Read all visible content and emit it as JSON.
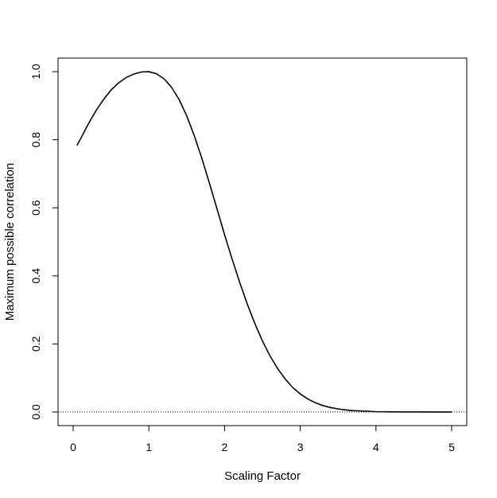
{
  "chart_data": {
    "type": "line",
    "title": "",
    "xlabel": "Scaling Factor",
    "ylabel": "Maximum possible correlation",
    "xlim": [
      -0.2,
      5.2
    ],
    "ylim": [
      -0.04,
      1.04
    ],
    "xticks": [
      0,
      1,
      2,
      3,
      4,
      5
    ],
    "xtick_labels": [
      "0",
      "1",
      "2",
      "3",
      "4",
      "5"
    ],
    "yticks": [
      0.0,
      0.2,
      0.4,
      0.6,
      0.8,
      1.0
    ],
    "ytick_labels": [
      "0.0",
      "0.2",
      "0.4",
      "0.6",
      "0.8",
      "1.0"
    ],
    "grid": false,
    "reference_line": {
      "y": 0,
      "style": "dotted"
    },
    "series": [
      {
        "x": [
          0.05,
          0.1,
          0.2,
          0.3,
          0.4,
          0.5,
          0.6,
          0.7,
          0.8,
          0.9,
          1.0,
          1.1,
          1.2,
          1.3,
          1.4,
          1.5,
          1.6,
          1.7,
          1.8,
          1.9,
          2.0,
          2.1,
          2.2,
          2.3,
          2.4,
          2.5,
          2.6,
          2.7,
          2.8,
          2.9,
          3.0,
          3.1,
          3.2,
          3.3,
          3.4,
          3.5,
          3.6,
          3.7,
          3.8,
          3.9,
          4.0,
          4.2,
          4.4,
          4.6,
          4.8,
          5.0
        ],
        "y": [
          0.783,
          0.804,
          0.847,
          0.885,
          0.918,
          0.946,
          0.967,
          0.983,
          0.993,
          0.999,
          1.0,
          0.994,
          0.979,
          0.954,
          0.918,
          0.87,
          0.812,
          0.745,
          0.672,
          0.597,
          0.521,
          0.449,
          0.381,
          0.317,
          0.26,
          0.209,
          0.165,
          0.128,
          0.097,
          0.072,
          0.053,
          0.038,
          0.027,
          0.019,
          0.013,
          0.009,
          0.006,
          0.004,
          0.003,
          0.002,
          0.001,
          0.0005,
          0.0002,
          0.0001,
          0.0,
          0.0
        ]
      }
    ]
  }
}
